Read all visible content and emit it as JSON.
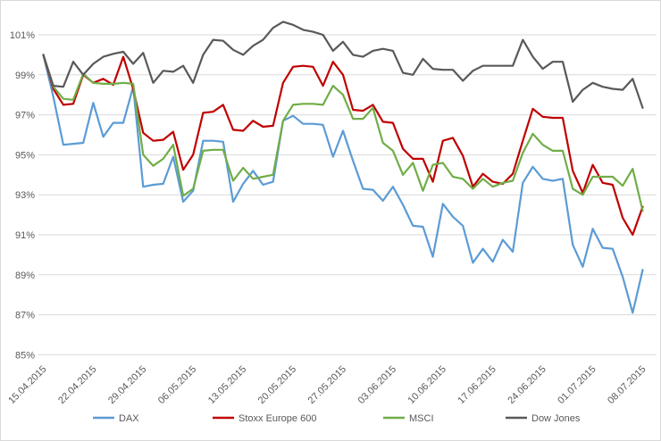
{
  "chart_data": {
    "type": "line",
    "title": "",
    "xlabel": "",
    "ylabel": "",
    "grid": true,
    "legend_position": "bottom",
    "y_axis": {
      "format": "percent",
      "tick_values": [
        101,
        99,
        97,
        95,
        93,
        91,
        89,
        87,
        85
      ],
      "tick_labels": [
        "101%",
        "99%",
        "97%",
        "95%",
        "93%",
        "91%",
        "89%",
        "87%",
        "85%"
      ]
    },
    "x_tick_labels": [
      "15.04.2015",
      "22.04.2015",
      "29.04.2015",
      "06.05.2015",
      "13.05.2015",
      "20.05.2015",
      "27.05.2015",
      "03.06.2015",
      "10.06.2015",
      "17.06.2015",
      "24.06.2015",
      "01.07.2015",
      "08.07.2015"
    ],
    "x": [
      "15.04.2015",
      "16.04.2015",
      "17.04.2015",
      "20.04.2015",
      "21.04.2015",
      "22.04.2015",
      "23.04.2015",
      "24.04.2015",
      "27.04.2015",
      "28.04.2015",
      "29.04.2015",
      "30.04.2015",
      "01.05.2015",
      "04.05.2015",
      "05.05.2015",
      "06.05.2015",
      "07.05.2015",
      "08.05.2015",
      "11.05.2015",
      "12.05.2015",
      "13.05.2015",
      "14.05.2015",
      "15.05.2015",
      "18.05.2015",
      "19.05.2015",
      "20.05.2015",
      "21.05.2015",
      "22.05.2015",
      "25.05.2015",
      "26.05.2015",
      "27.05.2015",
      "28.05.2015",
      "29.05.2015",
      "01.06.2015",
      "02.06.2015",
      "03.06.2015",
      "04.06.2015",
      "05.06.2015",
      "08.06.2015",
      "09.06.2015",
      "10.06.2015",
      "11.06.2015",
      "12.06.2015",
      "15.06.2015",
      "16.06.2015",
      "17.06.2015",
      "18.06.2015",
      "19.06.2015",
      "22.06.2015",
      "23.06.2015",
      "24.06.2015",
      "25.06.2015",
      "26.06.2015",
      "29.06.2015",
      "30.06.2015",
      "01.07.2015",
      "02.07.2015",
      "03.07.2015",
      "06.07.2015",
      "07.07.2015",
      "08.07.2015"
    ],
    "series": [
      {
        "name": "DAX",
        "color": "#5B9BD5",
        "values": [
          100.0,
          97.9,
          95.5,
          95.55,
          95.6,
          97.6,
          95.9,
          96.6,
          96.6,
          98.4,
          93.4,
          93.5,
          93.55,
          94.9,
          92.65,
          93.2,
          95.7,
          95.7,
          95.65,
          92.65,
          93.55,
          94.2,
          93.5,
          93.65,
          96.7,
          96.95,
          96.55,
          96.55,
          96.5,
          94.9,
          96.2,
          94.7,
          93.3,
          93.25,
          92.7,
          93.4,
          92.5,
          91.45,
          91.4,
          89.9,
          92.55,
          91.9,
          91.45,
          89.6,
          90.3,
          89.65,
          90.75,
          90.15,
          93.6,
          94.4,
          93.8,
          93.7,
          93.8,
          90.5,
          89.4,
          91.3,
          90.35,
          90.3,
          88.9,
          87.1,
          89.25
        ]
      },
      {
        "name": "Stoxx Europe 600",
        "color": "#C00000",
        "values": [
          100.0,
          98.3,
          97.5,
          97.55,
          99.0,
          98.6,
          98.8,
          98.5,
          99.9,
          98.3,
          96.1,
          95.7,
          95.75,
          96.15,
          94.25,
          95.0,
          97.1,
          97.15,
          97.5,
          96.25,
          96.2,
          96.7,
          96.4,
          96.45,
          98.6,
          99.4,
          99.45,
          99.4,
          98.45,
          99.65,
          99.0,
          97.25,
          97.2,
          97.5,
          96.65,
          96.6,
          95.3,
          94.8,
          94.8,
          93.65,
          95.7,
          95.85,
          94.95,
          93.4,
          94.05,
          93.65,
          93.55,
          94.05,
          95.7,
          97.3,
          96.9,
          96.85,
          96.85,
          94.2,
          93.1,
          94.5,
          93.6,
          93.5,
          91.85,
          91.0,
          92.4
        ]
      },
      {
        "name": "MSCI",
        "color": "#70AD47",
        "values": [
          100.0,
          98.4,
          97.8,
          97.75,
          99.05,
          98.6,
          98.55,
          98.55,
          98.6,
          98.55,
          95.0,
          94.45,
          94.8,
          95.5,
          92.95,
          93.3,
          95.2,
          95.25,
          95.25,
          93.7,
          94.35,
          93.8,
          93.9,
          94.0,
          96.7,
          97.5,
          97.55,
          97.55,
          97.5,
          98.45,
          98.0,
          96.8,
          96.8,
          97.35,
          95.6,
          95.2,
          94.0,
          94.6,
          93.2,
          94.5,
          94.6,
          93.9,
          93.8,
          93.3,
          93.8,
          93.4,
          93.6,
          93.7,
          95.1,
          96.05,
          95.5,
          95.2,
          95.2,
          93.3,
          93.0,
          93.9,
          93.9,
          93.9,
          93.45,
          94.3,
          92.2
        ]
      },
      {
        "name": "Dow Jones",
        "color": "#595959",
        "values": [
          100.0,
          98.45,
          98.4,
          99.65,
          99.0,
          99.55,
          99.9,
          100.05,
          100.15,
          99.55,
          100.1,
          98.6,
          99.2,
          99.15,
          99.45,
          98.6,
          100.0,
          100.75,
          100.7,
          100.25,
          100.0,
          100.45,
          100.75,
          101.35,
          101.65,
          101.5,
          101.25,
          101.15,
          101.0,
          100.2,
          100.65,
          100.0,
          99.9,
          100.2,
          100.3,
          100.2,
          99.1,
          99.0,
          99.8,
          99.3,
          99.25,
          99.25,
          98.7,
          99.2,
          99.45,
          99.45,
          99.45,
          99.45,
          100.75,
          99.9,
          99.3,
          99.65,
          99.65,
          97.65,
          98.25,
          98.6,
          98.4,
          98.3,
          98.25,
          98.8,
          97.35
        ]
      }
    ],
    "legend_labels": [
      "DAX",
      "Stoxx Europe 600",
      "MSCI",
      "Dow Jones"
    ]
  },
  "styles": {
    "background": "#FFFFFF",
    "frame_border": "#D9D9D9",
    "gridline": "#D9D9D9",
    "axis_text": "#595959"
  }
}
